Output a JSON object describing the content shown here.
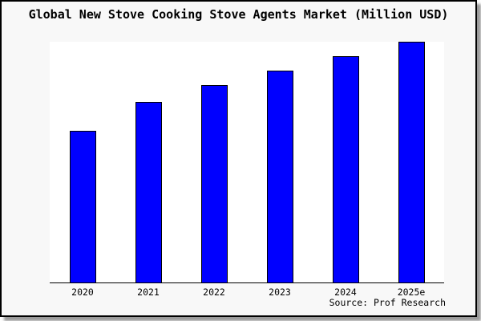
{
  "title": "Global New Stove Cooking Stove Agents Market (Million USD)",
  "source_note": "Source: Prof Research",
  "colors": {
    "background": "#f8f8f8",
    "plot_background": "#ffffff",
    "bar_fill": "#0000ff",
    "bar_border": "#000000",
    "axis": "#000000",
    "frame_border": "#000000",
    "shadow": "#9a9a9a",
    "text": "#000000"
  },
  "chart_data": {
    "type": "bar",
    "title": "Global New Stove Cooking Stove Agents Market (Million USD)",
    "categories": [
      "2020",
      "2021",
      "2022",
      "2023",
      "2024",
      "2025e"
    ],
    "values": [
      63,
      75,
      82,
      88,
      94,
      100
    ],
    "value_basis": "relative units estimated from bar heights; no y-axis tick labels shown, tallest bar (2025e) = 100",
    "xlabel": "",
    "ylabel": "",
    "ylim": [
      0,
      100
    ],
    "grid": false,
    "legend_position": "none",
    "y_axis_visible": false,
    "x_axis_visible": true,
    "source_note": "Source: Prof Research"
  }
}
